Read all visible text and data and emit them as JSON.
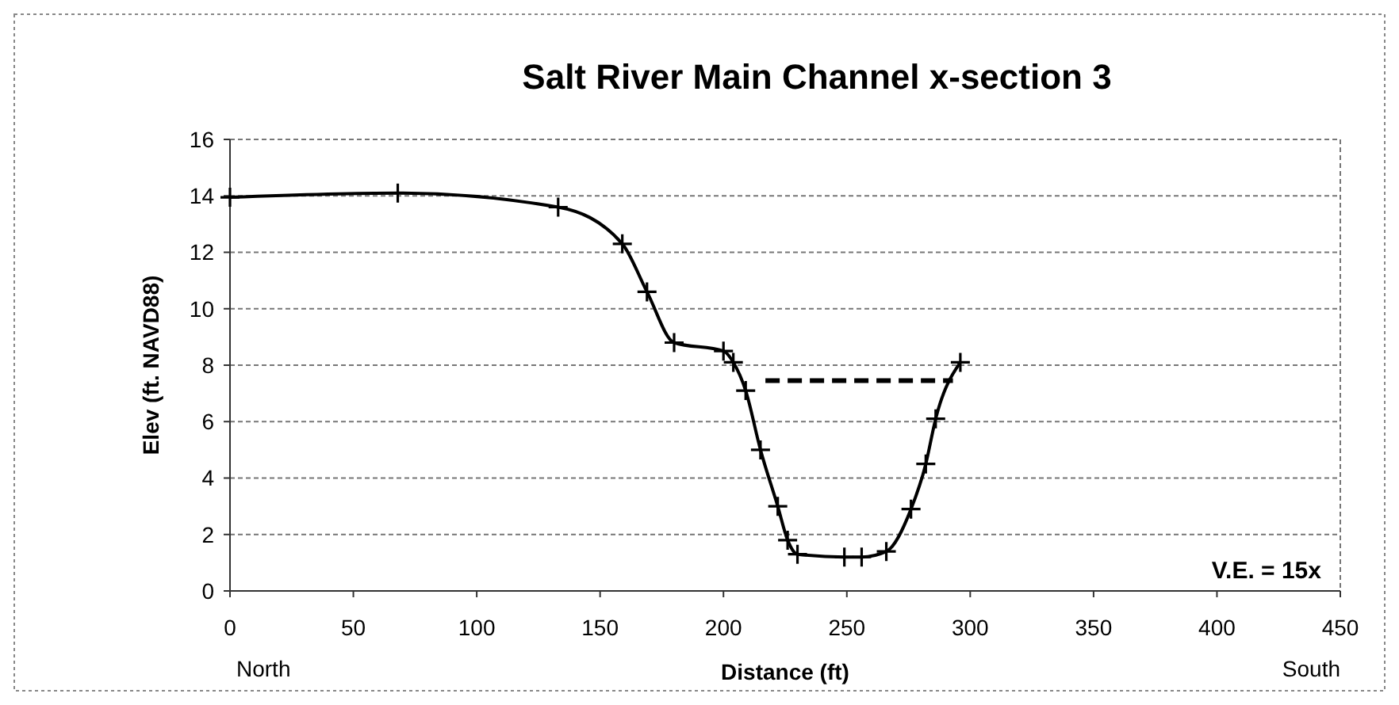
{
  "chart_data": {
    "type": "line",
    "title": "Salt River Main Channel x-section 3",
    "xlabel": "Distance (ft)",
    "ylabel": "Elev (ft. NAVD88)",
    "annotations": [
      "V.E. = 15x",
      "North",
      "South"
    ],
    "xlim": [
      0,
      450
    ],
    "xticks": [
      0,
      50,
      100,
      150,
      200,
      250,
      300,
      350,
      400,
      450
    ],
    "ylim": [
      0,
      16
    ],
    "yticks": [
      0,
      2,
      4,
      6,
      8,
      10,
      12,
      14,
      16
    ],
    "grid": "y",
    "series": [
      {
        "color": "#000000",
        "marker": "cross",
        "line_style": "solid",
        "x": [
          0,
          68,
          133,
          159,
          169,
          180,
          200,
          204,
          209,
          215,
          222,
          226,
          230,
          249,
          256,
          266,
          276,
          282,
          286,
          296
        ],
        "values": [
          13.95,
          14.1,
          13.6,
          12.3,
          10.6,
          8.8,
          8.5,
          8.1,
          7.1,
          5.0,
          3.0,
          1.8,
          1.3,
          1.2,
          1.2,
          1.4,
          2.9,
          4.5,
          6.1,
          8.1
        ]
      },
      {
        "color": "#000000",
        "marker": "none",
        "line_style": "dashed",
        "x": [
          217,
          293
        ],
        "values": [
          7.45,
          7.45
        ]
      }
    ]
  }
}
